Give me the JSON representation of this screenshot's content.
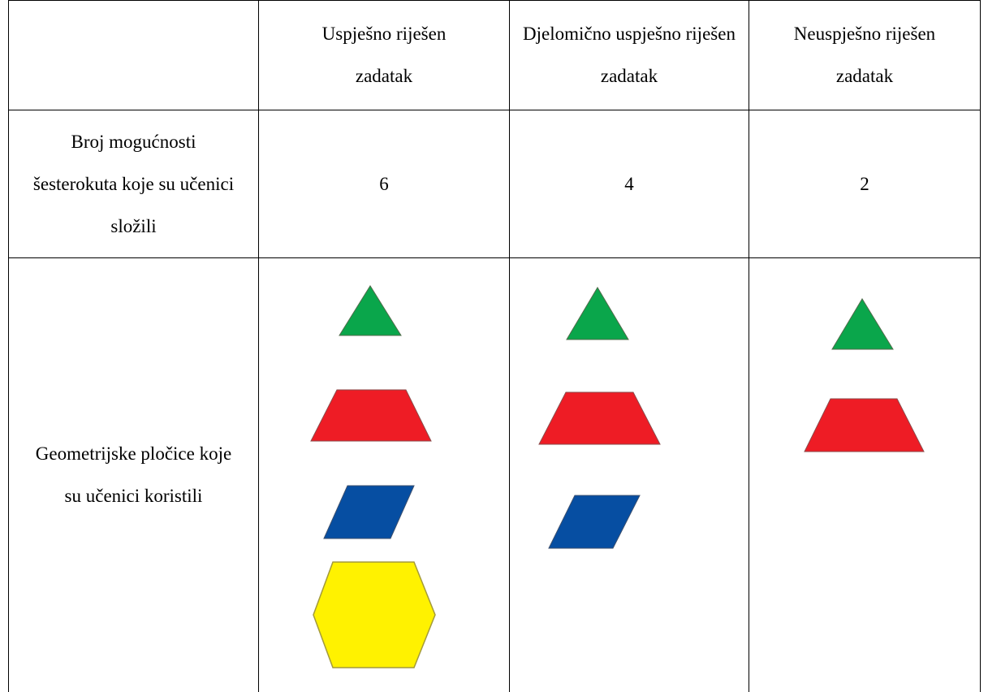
{
  "table": {
    "header": [
      "Uspješno riješen zadatak",
      "Djelomično uspješno riješen zadatak",
      "Neuspješno riješen zadatak"
    ],
    "rows": [
      {
        "label": "Broj mogućnosti šesterokuta koje su učenici složili",
        "values": [
          6,
          4,
          2
        ]
      },
      {
        "label": "Geometrijske pločice koje su učenici koristili"
      }
    ]
  }
}
